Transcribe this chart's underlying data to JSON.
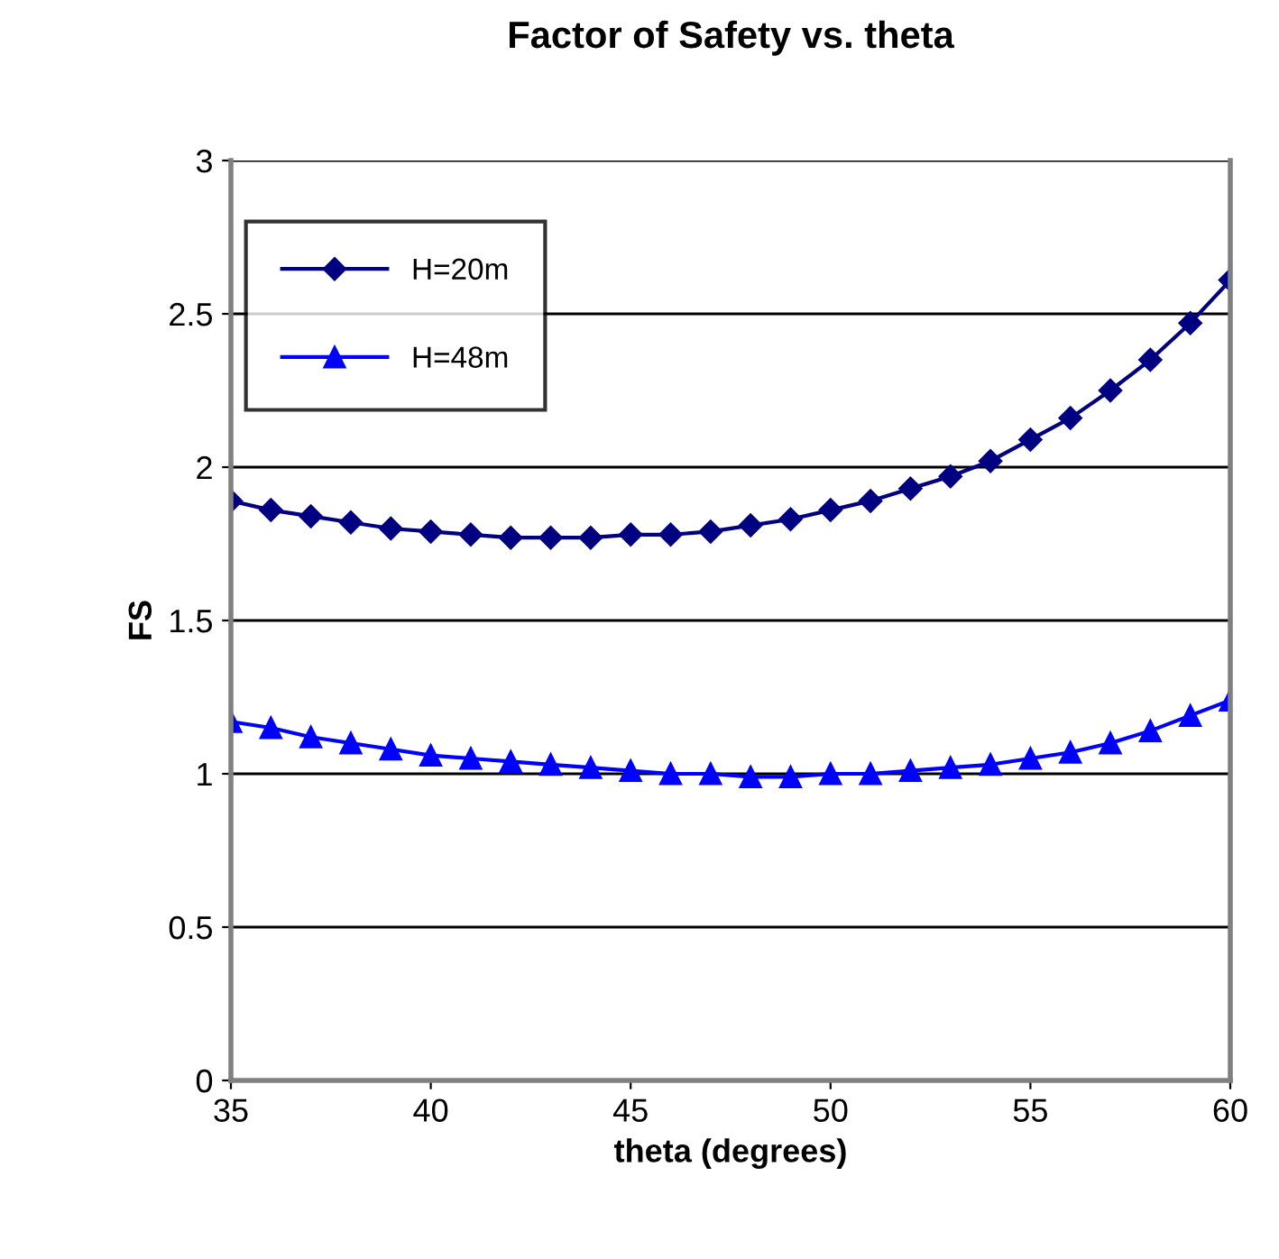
{
  "chart_data": {
    "type": "line",
    "title": "Factor of Safety vs. theta",
    "xlabel": "theta (degrees)",
    "ylabel": "FS",
    "x": [
      35,
      36,
      37,
      38,
      39,
      40,
      41,
      42,
      43,
      44,
      45,
      46,
      47,
      48,
      49,
      50,
      51,
      52,
      53,
      54,
      55,
      56,
      57,
      58,
      59,
      60
    ],
    "series": [
      {
        "name": "H=20m",
        "color": "#000080",
        "marker": "diamond",
        "values": [
          1.89,
          1.86,
          1.84,
          1.82,
          1.8,
          1.79,
          1.78,
          1.77,
          1.77,
          1.77,
          1.78,
          1.78,
          1.79,
          1.81,
          1.83,
          1.86,
          1.89,
          1.93,
          1.97,
          2.02,
          2.09,
          2.16,
          2.25,
          2.35,
          2.47,
          2.61
        ]
      },
      {
        "name": "H=48m",
        "color": "#0000ff",
        "marker": "triangle",
        "values": [
          1.17,
          1.15,
          1.12,
          1.1,
          1.08,
          1.06,
          1.05,
          1.04,
          1.03,
          1.02,
          1.01,
          1.0,
          1.0,
          0.99,
          0.99,
          1.0,
          1.0,
          1.01,
          1.02,
          1.03,
          1.05,
          1.07,
          1.1,
          1.14,
          1.19,
          1.24
        ]
      }
    ],
    "xlim": [
      35,
      60
    ],
    "xticks": [
      35,
      40,
      45,
      50,
      55,
      60
    ],
    "ylim": [
      0,
      3
    ],
    "yticks": [
      0,
      0.5,
      1,
      1.5,
      2,
      2.5,
      3
    ],
    "grid": "y",
    "legend": "top left",
    "line_style": "solid"
  }
}
